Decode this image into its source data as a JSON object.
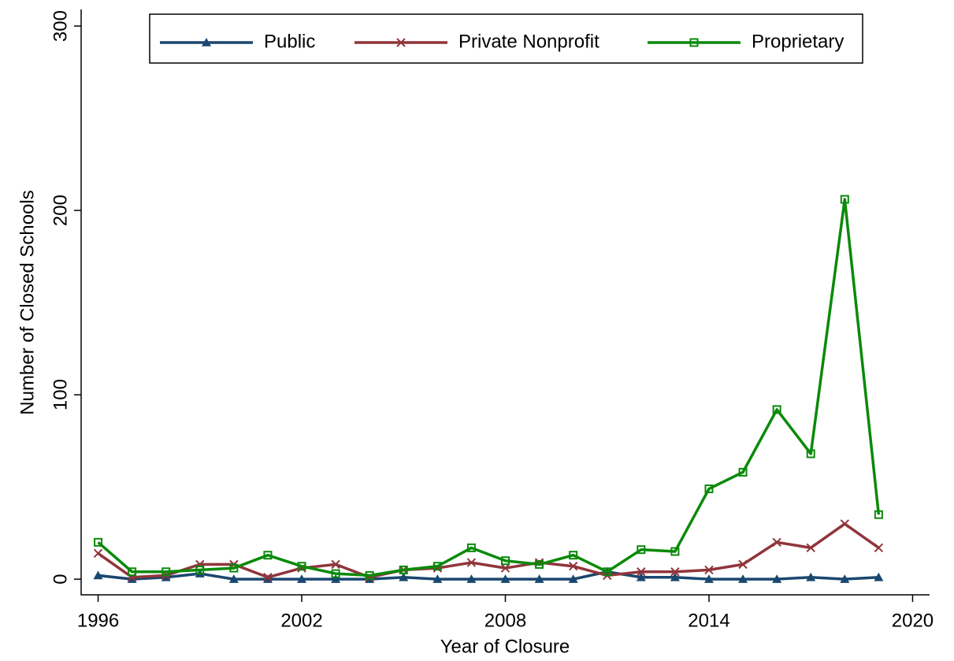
{
  "chart_data": {
    "type": "line",
    "x_label": "Year of Closure",
    "y_label": "Number of Closed Schools",
    "x": [
      1996,
      1997,
      1998,
      1999,
      2000,
      2001,
      2002,
      2003,
      2004,
      2005,
      2006,
      2007,
      2008,
      2009,
      2010,
      2011,
      2012,
      2013,
      2014,
      2015,
      2016,
      2017,
      2018,
      2019
    ],
    "series": [
      {
        "name": "Public",
        "color": "#1a476f",
        "marker": "triangle",
        "values": [
          2,
          0,
          1,
          3,
          0,
          0,
          0,
          0,
          0,
          1,
          0,
          0,
          0,
          0,
          0,
          4,
          1,
          1,
          0,
          0,
          0,
          1,
          0,
          1
        ]
      },
      {
        "name": "Private Nonprofit",
        "color": "#90353b",
        "marker": "x",
        "values": [
          14,
          1,
          2,
          8,
          8,
          1,
          6,
          8,
          1,
          5,
          6,
          9,
          6,
          9,
          7,
          2,
          4,
          4,
          5,
          8,
          20,
          17,
          30,
          17
        ]
      },
      {
        "name": "Proprietary",
        "color": "#0a8a0a",
        "marker": "square",
        "values": [
          20,
          4,
          4,
          5,
          6,
          13,
          7,
          3,
          2,
          5,
          7,
          17,
          10,
          8,
          13,
          4,
          16,
          15,
          49,
          58,
          92,
          68,
          206,
          35
        ]
      }
    ],
    "xlim": [
      1995.5,
      2020.5
    ],
    "xticks": [
      1996,
      2002,
      2008,
      2014,
      2020
    ],
    "ylim": [
      -8.5,
      309
    ],
    "yticks": [
      0,
      100,
      200,
      300
    ],
    "legend": "top"
  }
}
